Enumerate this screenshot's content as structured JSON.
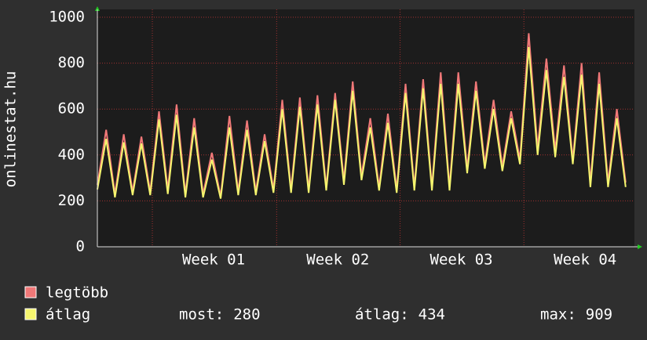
{
  "chart_data": {
    "type": "line",
    "ylabel": "onlinestat.hu",
    "x": [
      0,
      0.5,
      1,
      1.5,
      2,
      2.5,
      3,
      3.5,
      4,
      4.5,
      5,
      5.5,
      6,
      6.5,
      7,
      7.5,
      8,
      8.5,
      9,
      9.5,
      10,
      10.5,
      11,
      11.5,
      12,
      12.5,
      13,
      13.5,
      14,
      14.5,
      15,
      15.5,
      16,
      16.5,
      17,
      17.5,
      18,
      18.5,
      19,
      19.5,
      20,
      20.5,
      21,
      21.5,
      22,
      22.5,
      23,
      23.5,
      24,
      24.5,
      25,
      25.5,
      26,
      26.5,
      27,
      27.5,
      28,
      28.5,
      29,
      29.5,
      30
    ],
    "xlim": [
      0,
      30.5
    ],
    "xticks": [
      {
        "value": 6.6,
        "label": "Week 01"
      },
      {
        "value": 13.66,
        "label": "Week 02"
      },
      {
        "value": 20.67,
        "label": "Week 03"
      },
      {
        "value": 27.7,
        "label": "Week 04"
      }
    ],
    "ylim": [
      0,
      1000
    ],
    "yticks": [
      0,
      200,
      400,
      600,
      800,
      1000
    ],
    "grid": true,
    "series": [
      {
        "name": "legtöbb",
        "color": "#f07878",
        "values": [
          270,
          510,
          230,
          490,
          240,
          480,
          240,
          590,
          250,
          620,
          230,
          560,
          230,
          410,
          220,
          570,
          240,
          550,
          240,
          490,
          250,
          640,
          250,
          650,
          250,
          660,
          260,
          670,
          290,
          720,
          310,
          560,
          260,
          580,
          250,
          710,
          260,
          730,
          260,
          760,
          260,
          760,
          340,
          720,
          360,
          640,
          350,
          590,
          380,
          930,
          430,
          820,
          420,
          790,
          380,
          800,
          280,
          760,
          280,
          600,
          280
        ]
      },
      {
        "name": "átlag",
        "color": "#f5f56e",
        "values": [
          250,
          470,
          215,
          455,
          225,
          450,
          225,
          555,
          230,
          575,
          215,
          520,
          215,
          380,
          210,
          520,
          225,
          510,
          225,
          460,
          235,
          600,
          235,
          610,
          235,
          620,
          245,
          640,
          270,
          680,
          290,
          520,
          245,
          540,
          235,
          670,
          245,
          690,
          245,
          710,
          245,
          710,
          320,
          680,
          340,
          600,
          330,
          560,
          360,
          870,
          400,
          770,
          390,
          740,
          360,
          750,
          260,
          710,
          260,
          560,
          260
        ]
      }
    ],
    "stats": [
      {
        "label": "most:",
        "value": 280
      },
      {
        "label": "átlag:",
        "value": 434
      },
      {
        "label": "max:",
        "value": 909
      }
    ]
  }
}
